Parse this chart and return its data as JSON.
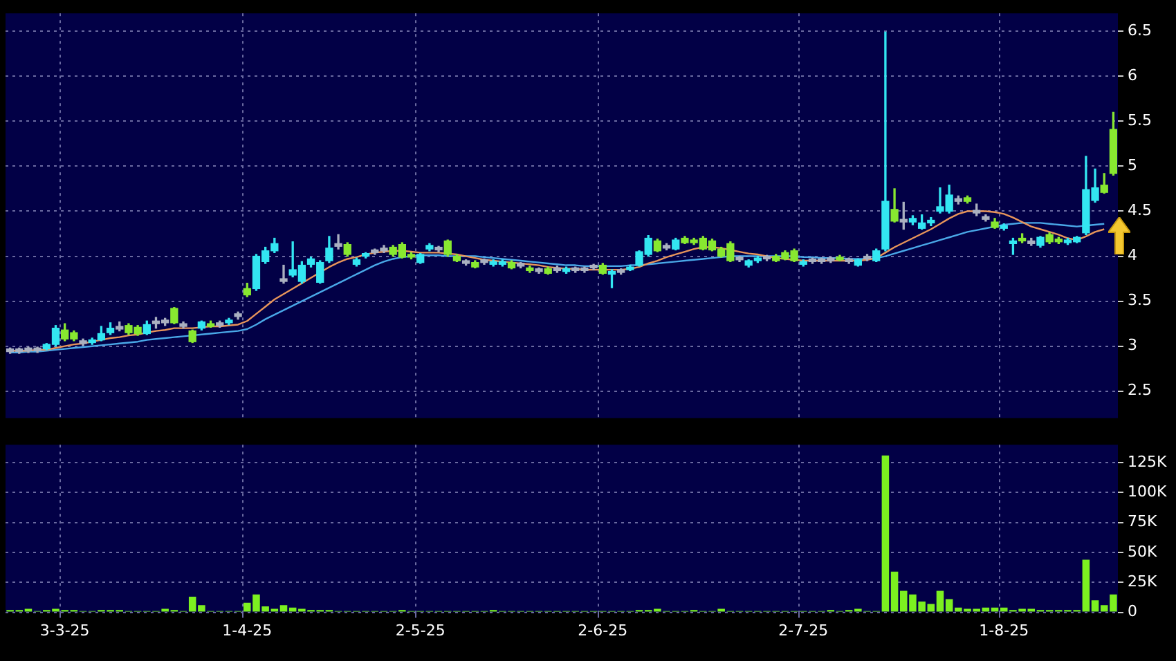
{
  "chart_data": [
    {
      "type": "candlestick",
      "categories": [
        null,
        null,
        null,
        null,
        null,
        null,
        null,
        null,
        null,
        null,
        null,
        null,
        null,
        null,
        null,
        null,
        null,
        null,
        null,
        null,
        null,
        null,
        null,
        null,
        null,
        null,
        null,
        null,
        null,
        null,
        null,
        null,
        null,
        null,
        null,
        null,
        null,
        null,
        null,
        null,
        null,
        null,
        null,
        null,
        null,
        null,
        null,
        null,
        null,
        null,
        null,
        null,
        null,
        null,
        null,
        null,
        null,
        null,
        null,
        null,
        null,
        null,
        null,
        null,
        null,
        null,
        null,
        null,
        null,
        null,
        null,
        null,
        null,
        null,
        null,
        null,
        null,
        null,
        null,
        null,
        null,
        null,
        null,
        null,
        null,
        null,
        null,
        null,
        null,
        null,
        null,
        null,
        null,
        null,
        null,
        null,
        null,
        null,
        null,
        null,
        null,
        null,
        null,
        null,
        null,
        null,
        null,
        null,
        null,
        null,
        null,
        null,
        null,
        null,
        null,
        null,
        null,
        null,
        null,
        null,
        null,
        null
      ],
      "ohlc": [
        [
          2.94,
          2.98,
          2.92,
          2.97
        ],
        [
          2.94,
          2.98,
          2.92,
          2.97
        ],
        [
          2.95,
          2.99,
          2.93,
          2.98
        ],
        [
          2.95,
          2.99,
          2.93,
          2.98
        ],
        [
          2.97,
          3.03,
          2.96,
          3.02
        ],
        [
          3.02,
          3.23,
          3.0,
          3.2
        ],
        [
          3.18,
          3.25,
          3.06,
          3.08
        ],
        [
          3.15,
          3.17,
          3.06,
          3.08
        ],
        [
          3.03,
          3.08,
          3.01,
          3.06
        ],
        [
          3.04,
          3.09,
          3.02,
          3.07
        ],
        [
          3.07,
          3.22,
          3.06,
          3.14
        ],
        [
          3.15,
          3.26,
          3.13,
          3.2
        ],
        [
          3.19,
          3.27,
          3.17,
          3.22
        ],
        [
          3.23,
          3.25,
          3.13,
          3.15
        ],
        [
          3.21,
          3.23,
          3.12,
          3.14
        ],
        [
          3.14,
          3.28,
          3.13,
          3.24
        ],
        [
          3.25,
          3.32,
          3.2,
          3.28
        ],
        [
          3.26,
          3.31,
          3.23,
          3.29
        ],
        [
          3.42,
          3.43,
          3.25,
          3.26
        ],
        [
          3.22,
          3.27,
          3.2,
          3.25
        ],
        [
          3.17,
          3.18,
          3.04,
          3.05
        ],
        [
          3.2,
          3.28,
          3.18,
          3.27
        ],
        [
          3.25,
          3.28,
          3.21,
          3.22
        ],
        [
          3.23,
          3.28,
          3.21,
          3.26
        ],
        [
          3.26,
          3.31,
          3.24,
          3.29
        ],
        [
          3.33,
          3.38,
          3.3,
          3.36
        ],
        [
          3.64,
          3.7,
          3.55,
          3.57
        ],
        [
          3.64,
          4.02,
          3.62,
          4.0
        ],
        [
          3.94,
          4.1,
          3.92,
          4.06
        ],
        [
          4.06,
          4.2,
          4.04,
          4.14
        ],
        [
          3.72,
          3.9,
          3.7,
          3.75
        ],
        [
          3.79,
          4.16,
          3.77,
          3.85
        ],
        [
          3.72,
          3.94,
          3.7,
          3.9
        ],
        [
          3.91,
          3.99,
          3.88,
          3.97
        ],
        [
          3.71,
          3.95,
          3.7,
          3.93
        ],
        [
          3.95,
          4.22,
          3.93,
          4.09
        ],
        [
          4.11,
          4.24,
          4.08,
          4.14
        ],
        [
          4.13,
          4.15,
          4.0,
          4.02
        ],
        [
          3.91,
          3.98,
          3.89,
          3.96
        ],
        [
          4.0,
          4.04,
          3.98,
          4.03
        ],
        [
          4.04,
          4.08,
          4.02,
          4.07
        ],
        [
          4.06,
          4.12,
          4.04,
          4.09
        ],
        [
          4.1,
          4.12,
          4.0,
          4.02
        ],
        [
          4.13,
          4.15,
          3.98,
          3.99
        ],
        [
          4.02,
          4.04,
          3.97,
          3.99
        ],
        [
          3.93,
          4.03,
          3.92,
          4.02
        ],
        [
          4.08,
          4.14,
          4.06,
          4.12
        ],
        [
          4.07,
          4.11,
          4.05,
          4.1
        ],
        [
          4.17,
          4.18,
          4.0,
          4.02
        ],
        [
          4.0,
          4.02,
          3.94,
          3.95
        ],
        [
          3.92,
          3.96,
          3.9,
          3.95
        ],
        [
          3.93,
          3.95,
          3.87,
          3.88
        ],
        [
          3.93,
          3.97,
          3.91,
          3.96
        ],
        [
          3.91,
          3.96,
          3.89,
          3.94
        ],
        [
          3.91,
          3.96,
          3.89,
          3.94
        ],
        [
          3.93,
          3.95,
          3.86,
          3.87
        ],
        [
          3.89,
          3.93,
          3.87,
          3.92
        ],
        [
          3.87,
          3.89,
          3.82,
          3.84
        ],
        [
          3.83,
          3.87,
          3.81,
          3.86
        ],
        [
          3.86,
          3.88,
          3.8,
          3.81
        ],
        [
          3.84,
          3.89,
          3.82,
          3.87
        ],
        [
          3.83,
          3.88,
          3.81,
          3.86
        ],
        [
          3.84,
          3.88,
          3.82,
          3.87
        ],
        [
          3.84,
          3.88,
          3.82,
          3.87
        ],
        [
          3.87,
          3.91,
          3.85,
          3.9
        ],
        [
          3.9,
          3.92,
          3.8,
          3.81
        ],
        [
          3.8,
          3.85,
          3.65,
          3.83
        ],
        [
          3.82,
          3.86,
          3.8,
          3.85
        ],
        [
          3.85,
          3.9,
          3.84,
          3.88
        ],
        [
          3.9,
          4.06,
          3.89,
          4.05
        ],
        [
          4.02,
          4.23,
          4.0,
          4.2
        ],
        [
          4.17,
          4.19,
          4.05,
          4.06
        ],
        [
          4.09,
          4.14,
          4.07,
          4.12
        ],
        [
          4.08,
          4.2,
          4.07,
          4.18
        ],
        [
          4.2,
          4.22,
          4.14,
          4.15
        ],
        [
          4.18,
          4.2,
          4.13,
          4.15
        ],
        [
          4.2,
          4.22,
          4.07,
          4.08
        ],
        [
          4.17,
          4.19,
          4.06,
          4.07
        ],
        [
          4.08,
          4.1,
          3.99,
          4.0
        ],
        [
          4.14,
          4.16,
          3.94,
          3.95
        ],
        [
          3.96,
          4.0,
          3.94,
          3.99
        ],
        [
          3.9,
          3.96,
          3.88,
          3.95
        ],
        [
          3.95,
          4.0,
          3.93,
          3.98
        ],
        [
          3.97,
          4.01,
          3.95,
          4.0
        ],
        [
          4.0,
          4.02,
          3.94,
          3.95
        ],
        [
          4.04,
          4.06,
          3.96,
          3.97
        ],
        [
          4.06,
          4.08,
          3.94,
          3.95
        ],
        [
          3.91,
          3.96,
          3.89,
          3.94
        ],
        [
          3.94,
          3.98,
          3.92,
          3.97
        ],
        [
          3.94,
          3.98,
          3.92,
          3.97
        ],
        [
          3.95,
          3.99,
          3.93,
          3.98
        ],
        [
          3.99,
          4.01,
          3.95,
          3.96
        ],
        [
          3.94,
          3.98,
          3.92,
          3.97
        ],
        [
          3.9,
          3.97,
          3.89,
          3.96
        ],
        [
          3.97,
          4.02,
          3.95,
          4.0
        ],
        [
          3.95,
          4.08,
          3.94,
          4.06
        ],
        [
          4.08,
          6.49,
          4.06,
          4.61
        ],
        [
          4.52,
          4.75,
          4.38,
          4.39
        ],
        [
          4.38,
          4.6,
          4.3,
          4.41
        ],
        [
          4.38,
          4.45,
          4.35,
          4.42
        ],
        [
          4.31,
          4.46,
          4.3,
          4.37
        ],
        [
          4.37,
          4.43,
          4.34,
          4.4
        ],
        [
          4.5,
          4.76,
          4.48,
          4.55
        ],
        [
          4.5,
          4.79,
          4.48,
          4.68
        ],
        [
          4.61,
          4.67,
          4.58,
          4.64
        ],
        [
          4.65,
          4.67,
          4.59,
          4.61
        ],
        [
          4.48,
          4.58,
          4.45,
          4.51
        ],
        [
          4.41,
          4.46,
          4.39,
          4.44
        ],
        [
          4.38,
          4.42,
          4.31,
          4.32
        ],
        [
          4.31,
          4.36,
          4.29,
          4.34
        ],
        [
          4.14,
          4.2,
          4.02,
          4.17
        ],
        [
          4.2,
          4.25,
          4.15,
          4.17
        ],
        [
          4.14,
          4.2,
          4.12,
          4.17
        ],
        [
          4.12,
          4.22,
          4.1,
          4.21
        ],
        [
          4.24,
          4.26,
          4.14,
          4.16
        ],
        [
          4.19,
          4.21,
          4.14,
          4.16
        ],
        [
          4.15,
          4.2,
          4.13,
          4.18
        ],
        [
          4.16,
          4.22,
          4.15,
          4.21
        ],
        [
          4.26,
          5.11,
          4.24,
          4.74
        ],
        [
          4.62,
          4.97,
          4.6,
          4.76
        ],
        [
          4.79,
          4.92,
          4.7,
          4.71
        ],
        [
          5.41,
          5.6,
          4.9,
          4.92
        ]
      ],
      "colors": [
        "#aab0c0",
        "#aab0c0",
        "#aab0c0",
        "#aab0c0",
        "#33e6f2",
        "#33e6f2",
        "#88e830",
        "#88e830",
        "#aab0c0",
        "#33e6f2",
        "#33e6f2",
        "#33e6f2",
        "#aab0c0",
        "#88e830",
        "#88e830",
        "#33e6f2",
        "#aab0c0",
        "#aab0c0",
        "#88e830",
        "#aab0c0",
        "#88e830",
        "#33e6f2",
        "#88e830",
        "#aab0c0",
        "#33e6f2",
        "#aab0c0",
        "#88e830",
        "#33e6f2",
        "#33e6f2",
        "#33e6f2",
        "#aab0c0",
        "#33e6f2",
        "#33e6f2",
        "#33e6f2",
        "#33e6f2",
        "#33e6f2",
        "#aab0c0",
        "#88e830",
        "#33e6f2",
        "#33e6f2",
        "#aab0c0",
        "#aab0c0",
        "#88e830",
        "#88e830",
        "#88e830",
        "#33e6f2",
        "#33e6f2",
        "#aab0c0",
        "#88e830",
        "#88e830",
        "#aab0c0",
        "#88e830",
        "#aab0c0",
        "#33e6f2",
        "#33e6f2",
        "#88e830",
        "#aab0c0",
        "#88e830",
        "#aab0c0",
        "#88e830",
        "#aab0c0",
        "#33e6f2",
        "#aab0c0",
        "#aab0c0",
        "#aab0c0",
        "#88e830",
        "#33e6f2",
        "#aab0c0",
        "#33e6f2",
        "#33e6f2",
        "#33e6f2",
        "#88e830",
        "#aab0c0",
        "#33e6f2",
        "#88e830",
        "#88e830",
        "#88e830",
        "#88e830",
        "#88e830",
        "#88e830",
        "#aab0c0",
        "#33e6f2",
        "#33e6f2",
        "#aab0c0",
        "#88e830",
        "#88e830",
        "#88e830",
        "#33e6f2",
        "#aab0c0",
        "#aab0c0",
        "#aab0c0",
        "#88e830",
        "#aab0c0",
        "#33e6f2",
        "#aab0c0",
        "#33e6f2",
        "#33e6f2",
        "#88e830",
        "#aab0c0",
        "#33e6f2",
        "#33e6f2",
        "#33e6f2",
        "#33e6f2",
        "#33e6f2",
        "#aab0c0",
        "#88e830",
        "#aab0c0",
        "#aab0c0",
        "#88e830",
        "#33e6f2",
        "#33e6f2",
        "#88e830",
        "#aab0c0",
        "#33e6f2",
        "#88e830",
        "#88e830",
        "#33e6f2",
        "#33e6f2",
        "#33e6f2",
        "#33e6f2",
        "#88e830",
        "#88e830"
      ],
      "series": [
        {
          "type": "line",
          "color": "#e8955a",
          "values": [
            2.95,
            2.95,
            2.95,
            2.96,
            2.96,
            2.98,
            3.0,
            3.02,
            3.03,
            3.05,
            3.07,
            3.09,
            3.1,
            3.12,
            3.13,
            3.15,
            3.17,
            3.18,
            3.2,
            3.2,
            3.2,
            3.21,
            3.22,
            3.22,
            3.23,
            3.24,
            3.28,
            3.36,
            3.44,
            3.52,
            3.58,
            3.64,
            3.7,
            3.76,
            3.82,
            3.88,
            3.93,
            3.97,
            3.99,
            4.02,
            4.04,
            4.05,
            4.06,
            4.06,
            4.05,
            4.04,
            4.04,
            4.04,
            4.03,
            4.02,
            4.0,
            3.98,
            3.96,
            3.95,
            3.94,
            3.93,
            3.92,
            3.91,
            3.9,
            3.88,
            3.87,
            3.86,
            3.86,
            3.85,
            3.85,
            3.85,
            3.85,
            3.85,
            3.86,
            3.88,
            3.92,
            3.95,
            3.99,
            4.02,
            4.05,
            4.08,
            4.1,
            4.1,
            4.09,
            4.07,
            4.05,
            4.03,
            4.02,
            4.0,
            3.98,
            3.97,
            3.96,
            3.95,
            3.95,
            3.95,
            3.95,
            3.95,
            3.95,
            3.95,
            3.96,
            3.98,
            4.04,
            4.1,
            4.15,
            4.2,
            4.25,
            4.3,
            4.36,
            4.42,
            4.47,
            4.5,
            4.5,
            4.5,
            4.49,
            4.47,
            4.43,
            4.38,
            4.33,
            4.3,
            4.27,
            4.24,
            4.2,
            4.18,
            4.22,
            4.27,
            4.3,
            null
          ]
        },
        {
          "type": "line",
          "color": "#4aa8e8",
          "values": [
            2.93,
            2.93,
            2.94,
            2.94,
            2.95,
            2.96,
            2.97,
            2.98,
            2.99,
            3.0,
            3.01,
            3.02,
            3.03,
            3.04,
            3.05,
            3.07,
            3.08,
            3.09,
            3.1,
            3.11,
            3.12,
            3.13,
            3.14,
            3.15,
            3.16,
            3.17,
            3.19,
            3.24,
            3.3,
            3.35,
            3.4,
            3.45,
            3.5,
            3.55,
            3.6,
            3.65,
            3.7,
            3.75,
            3.8,
            3.85,
            3.9,
            3.94,
            3.97,
            3.99,
            4.0,
            4.01,
            4.01,
            4.01,
            4.0,
            4.0,
            4.0,
            4.0,
            3.99,
            3.98,
            3.97,
            3.96,
            3.95,
            3.94,
            3.93,
            3.92,
            3.91,
            3.9,
            3.9,
            3.89,
            3.89,
            3.89,
            3.89,
            3.89,
            3.9,
            3.9,
            3.91,
            3.92,
            3.93,
            3.94,
            3.95,
            3.96,
            3.97,
            3.98,
            3.99,
            4.0,
            4.0,
            4.0,
            4.0,
            4.0,
            4.0,
            4.0,
            4.0,
            3.99,
            3.99,
            3.98,
            3.98,
            3.98,
            3.97,
            3.97,
            3.97,
            3.98,
            4.0,
            4.03,
            4.06,
            4.09,
            4.12,
            4.15,
            4.18,
            4.21,
            4.24,
            4.27,
            4.29,
            4.31,
            4.33,
            4.35,
            4.36,
            4.37,
            4.37,
            4.37,
            4.36,
            4.35,
            4.34,
            4.33,
            4.34,
            4.35,
            4.36,
            null
          ]
        }
      ],
      "ylim": [
        2.2,
        6.7
      ],
      "yticks": [
        2.5,
        3,
        3.5,
        4,
        4.5,
        5,
        5.5,
        6,
        6.5
      ],
      "grid": true,
      "tick_labels": "y"
    },
    {
      "type": "bar",
      "categories": [
        null,
        null,
        null,
        null,
        null,
        null,
        "3-3-25",
        null,
        null,
        null,
        null,
        null,
        null,
        null,
        null,
        null,
        null,
        null,
        null,
        null,
        null,
        null,
        null,
        null,
        null,
        null,
        "1-4-25",
        null,
        null,
        null,
        null,
        null,
        null,
        null,
        null,
        null,
        null,
        null,
        null,
        null,
        null,
        null,
        null,
        null,
        null,
        "2-5-25",
        null,
        null,
        null,
        null,
        null,
        null,
        null,
        null,
        null,
        null,
        null,
        null,
        null,
        null,
        null,
        null,
        null,
        null,
        null,
        "2-6-25",
        null,
        null,
        null,
        null,
        null,
        null,
        null,
        null,
        null,
        null,
        null,
        null,
        null,
        null,
        null,
        null,
        null,
        null,
        null,
        null,
        null,
        "2-7-25",
        null,
        null,
        null,
        null,
        null,
        null,
        null,
        null,
        null,
        null,
        null,
        null,
        null,
        null,
        null,
        null,
        null,
        null,
        null,
        null,
        null,
        "1-8-25",
        null,
        null,
        null,
        null,
        null,
        null,
        null,
        null,
        null,
        null,
        null,
        null
      ],
      "values": [
        2000,
        2000,
        3000,
        1000,
        2000,
        3000,
        2000,
        2000,
        1000,
        1000,
        2000,
        2000,
        2000,
        1000,
        1000,
        1000,
        1000,
        3000,
        2000,
        1000,
        13000,
        6000,
        1000,
        1000,
        1000,
        1000,
        8000,
        15000,
        5000,
        3000,
        6000,
        4000,
        3000,
        2000,
        2000,
        2000,
        1000,
        1000,
        1000,
        1000,
        1000,
        1000,
        1000,
        2000,
        1000,
        1000,
        1000,
        1000,
        1000,
        1000,
        1000,
        1000,
        1000,
        2000,
        1000,
        1000,
        1000,
        1000,
        1000,
        1000,
        1000,
        1000,
        1000,
        1000,
        1000,
        1000,
        1000,
        1000,
        1000,
        2000,
        2000,
        3000,
        1000,
        1000,
        1000,
        2000,
        1000,
        1000,
        3000,
        1000,
        1000,
        1000,
        1000,
        1000,
        1000,
        1000,
        1000,
        1000,
        1000,
        1000,
        2000,
        1000,
        2000,
        3000,
        1000,
        1000,
        131000,
        34000,
        18000,
        15000,
        9000,
        7000,
        18000,
        11000,
        4000,
        3000,
        3000,
        4000,
        4000,
        4000,
        2000,
        3000,
        3000,
        2000,
        2000,
        2000,
        2000,
        2000,
        44000,
        10000,
        6000,
        15000
      ],
      "color": "#7cf020",
      "ylim": [
        0,
        140000
      ],
      "yticks": [
        {
          "value": 0,
          "label": "0"
        },
        {
          "value": 25000,
          "label": "25K"
        },
        {
          "value": 50000,
          "label": "50K"
        },
        {
          "value": 75000,
          "label": "75K"
        },
        {
          "value": 100000,
          "label": "100K"
        },
        {
          "value": 125000,
          "label": "125K"
        }
      ],
      "grid": true
    }
  ]
}
